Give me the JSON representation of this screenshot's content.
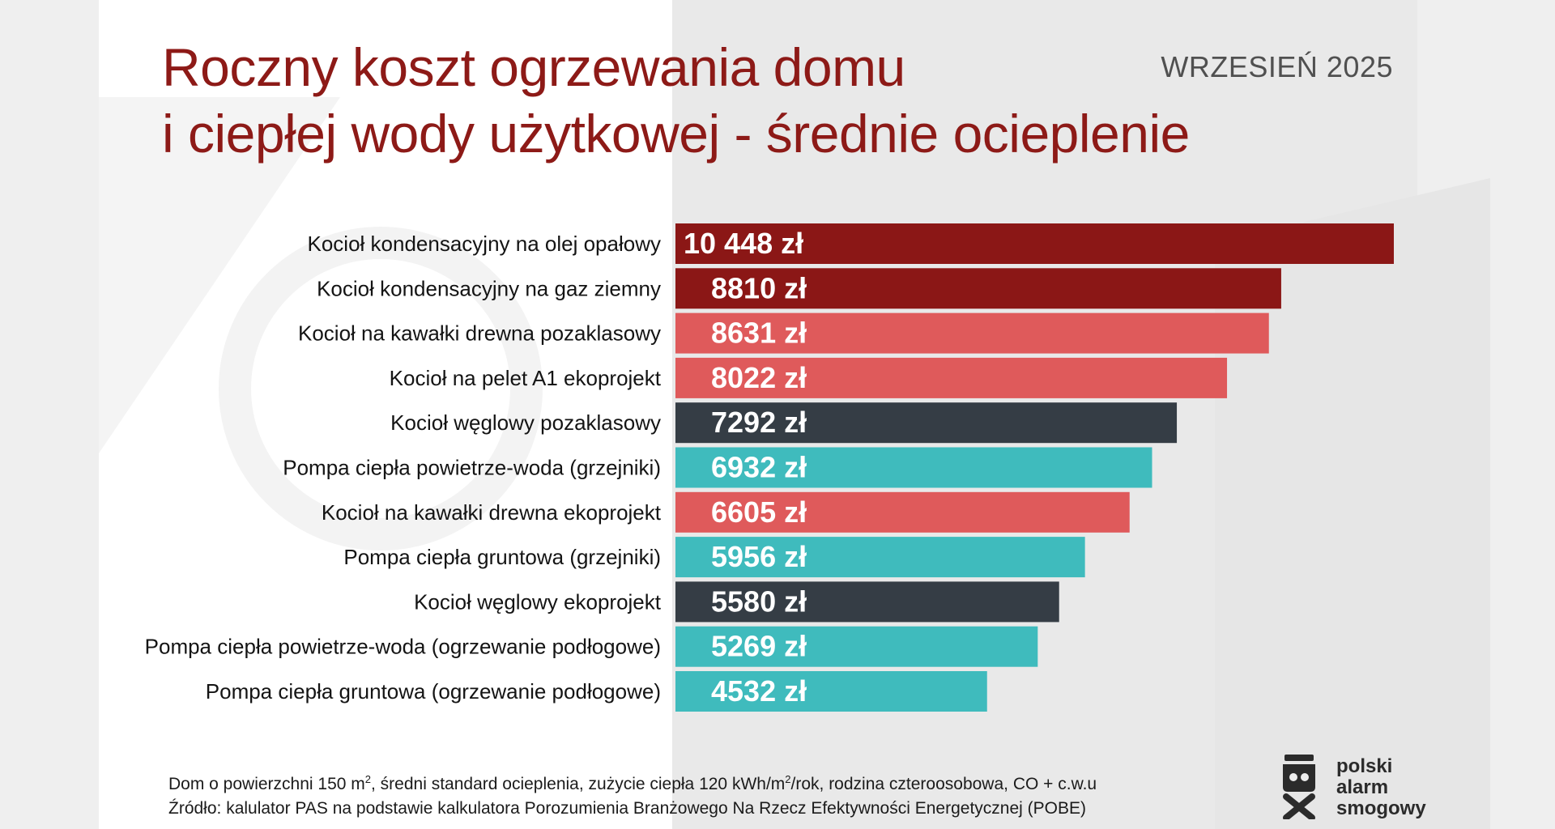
{
  "header": {
    "title_line1": "Roczny koszt ogrzewania domu",
    "title_line2": "i ciepłej wody użytkowej - średnie ocieplenie",
    "date": "WRZESIEŃ 2025"
  },
  "colors": {
    "oil_gas": "#8b1716",
    "wood_pellet": "#df5a5b",
    "coal": "#353d45",
    "heat_pump": "#3fbbbd"
  },
  "chart_data": {
    "type": "bar",
    "orientation": "horizontal",
    "title": "Roczny koszt ogrzewania domu i ciepłej wody użytkowej - średnie ocieplenie",
    "categories": [
      "Kocioł kondensacyjny na olej opałowy",
      "Kocioł kondensacyjny na gaz ziemny",
      "Kocioł na kawałki drewna pozaklasowy",
      "Kocioł na pelet A1 ekoprojekt",
      "Kocioł węglowy pozaklasowy",
      "Pompa ciepła powietrze-woda (grzejniki)",
      "Kocioł na kawałki drewna ekoprojekt",
      "Pompa ciepła gruntowa (grzejniki)",
      "Kocioł węglowy ekoprojekt",
      "Pompa ciepła powietrze-woda (ogrzewanie podłogowe)",
      "Pompa ciepła gruntowa (ogrzewanie podłogowe)"
    ],
    "values": [
      10448,
      8810,
      8631,
      8022,
      7292,
      6932,
      6605,
      5956,
      5580,
      5269,
      4532
    ],
    "value_labels": [
      "10 448 zł",
      "8810 zł",
      "8631 zł",
      "8022 zł",
      "7292 zł",
      "6932 zł",
      "6605 zł",
      "5956 zł",
      "5580 zł",
      "5269 zł",
      "4532 zł"
    ],
    "bar_colors": [
      "#8b1716",
      "#8b1716",
      "#df5a5b",
      "#df5a5b",
      "#353d45",
      "#3fbbbd",
      "#df5a5b",
      "#3fbbbd",
      "#353d45",
      "#3fbbbd",
      "#3fbbbd"
    ],
    "xlim": [
      0,
      10448
    ],
    "unit": "zł",
    "grid": false,
    "axes_visible": false
  },
  "footnote": {
    "line1_a": "Dom o powierzchni 150 m",
    "line1_sup1": "2",
    "line1_b": ", średni standard ocieplenia, zużycie ciepła 120 kWh/m",
    "line1_sup2": "2",
    "line1_c": "/rok, rodzina czteroosobowa, CO + c.w.u",
    "line2": "Źródło: kalulator PAS na podstawie kalkulatora Porozumienia Branżowego Na Rzecz Efektywności Energetycznej (POBE)"
  },
  "logo": {
    "line1": "polski",
    "line2": "alarm",
    "line3": "smogowy"
  }
}
